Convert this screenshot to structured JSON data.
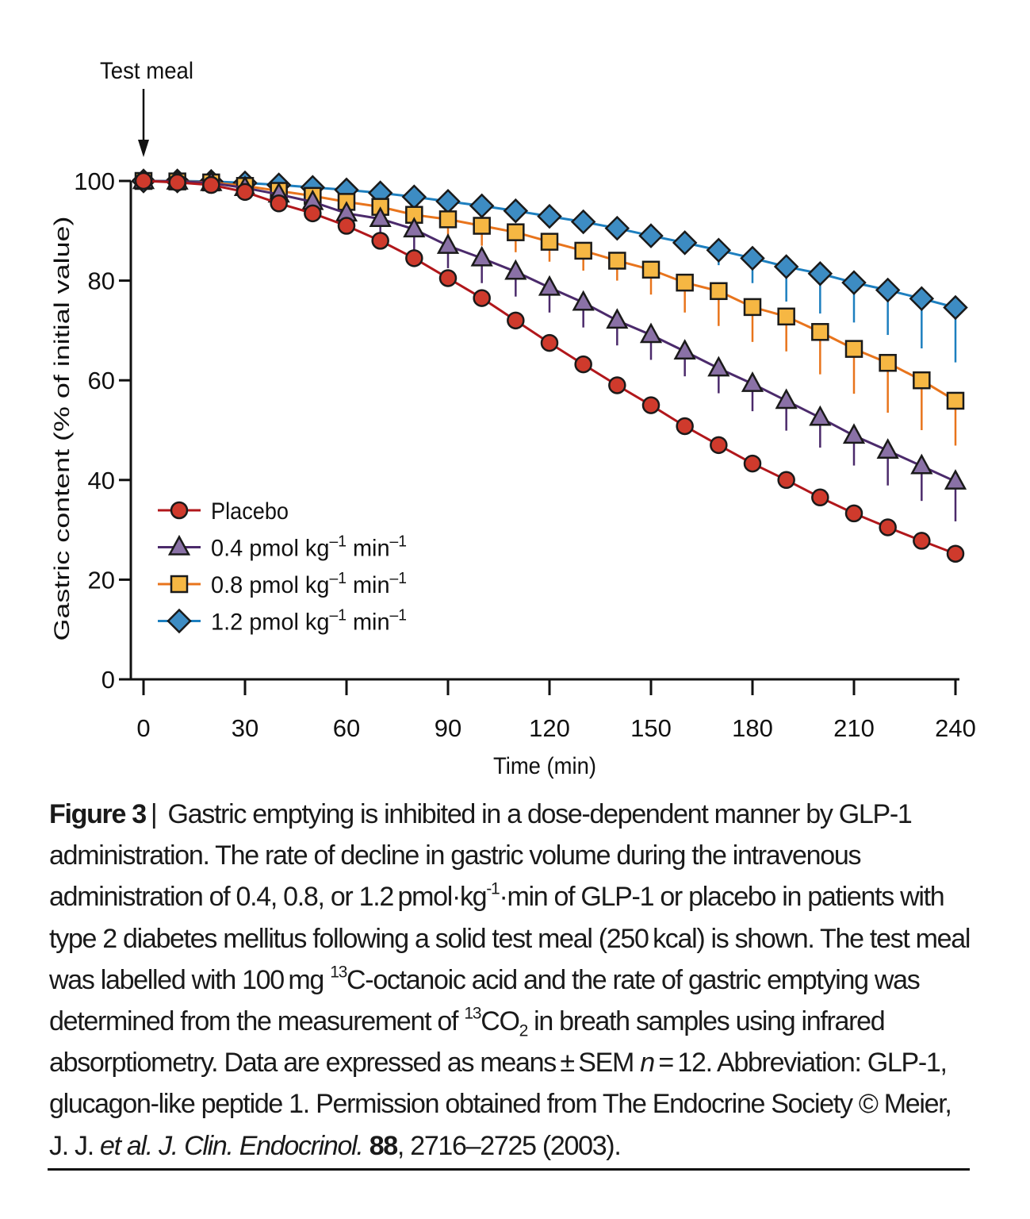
{
  "chart_data": {
    "type": "line",
    "annotation": "Test meal",
    "xlabel": "Time (min)",
    "ylabel": "Gastric content (% of initial value)",
    "xlim": [
      0,
      240
    ],
    "ylim": [
      0,
      100
    ],
    "xticks": [
      "0",
      "30",
      "60",
      "90",
      "120",
      "150",
      "180",
      "210",
      "240"
    ],
    "yticks": [
      "0",
      "20",
      "40",
      "60",
      "80",
      "100"
    ],
    "x": [
      0,
      10,
      20,
      30,
      40,
      50,
      60,
      70,
      80,
      90,
      100,
      110,
      120,
      130,
      140,
      150,
      160,
      170,
      180,
      190,
      200,
      210,
      220,
      230,
      240
    ],
    "legend_position": "lower-left",
    "series": [
      {
        "name": "Placebo",
        "marker": "circle",
        "line_color": "#b1171b",
        "fill_color": "#cf3a2c",
        "legend": {
          "text": "Placebo"
        },
        "values": [
          100,
          99.7,
          99.2,
          97.8,
          95.5,
          93.5,
          91,
          88,
          84.5,
          80.5,
          76.5,
          72,
          67.5,
          63.2,
          59,
          55,
          50.8,
          47,
          43.3,
          40,
          36.5,
          33.3,
          30.5,
          27.8,
          25.2
        ],
        "errors": [
          0,
          0,
          0,
          0,
          0,
          0,
          0,
          0,
          0,
          0,
          0,
          0,
          0,
          0,
          0,
          0,
          0,
          0,
          0,
          0,
          0,
          0,
          0,
          0,
          0
        ]
      },
      {
        "name": "0.4 pmol kg-1 min-1",
        "marker": "triangle",
        "line_color": "#4b2a6b",
        "fill_color": "#8a71a6",
        "legend": {
          "text": "0.4 pmol kg",
          "sup1": "–1",
          "mid": " min",
          "sup2": "–1"
        },
        "values": [
          100,
          99.9,
          99.6,
          98.6,
          97.3,
          95.8,
          93.5,
          92.4,
          90.3,
          87,
          84.5,
          81.8,
          78.6,
          75.6,
          72,
          69.1,
          65.8,
          62.4,
          59.3,
          55.9,
          52.5,
          48.9,
          45.9,
          42.8,
          39.7
        ],
        "errors": [
          0,
          0,
          0,
          0,
          0,
          0,
          2.5,
          3.5,
          4.5,
          4.5,
          5,
          5,
          5,
          5,
          5,
          5,
          5,
          5,
          5.5,
          6,
          6,
          6,
          7,
          7,
          8
        ]
      },
      {
        "name": "0.8 pmol kg-1 min-1",
        "marker": "square",
        "line_color": "#e8741c",
        "fill_color": "#f6b743",
        "legend": {
          "text": "0.8 pmol kg",
          "sup1": "–1",
          "mid": " min",
          "sup2": "–1"
        },
        "values": [
          100,
          99.9,
          99.7,
          99,
          98,
          97,
          95.8,
          94.8,
          93.2,
          92.3,
          91,
          89.7,
          87.8,
          86,
          84,
          82.2,
          79.6,
          77.9,
          74.7,
          72.8,
          69.7,
          66.3,
          63.5,
          60,
          55.9
        ],
        "errors": [
          0,
          0,
          0,
          0,
          0,
          0,
          1.5,
          2,
          3,
          3.5,
          4,
          4,
          4,
          4,
          4,
          5,
          6,
          7,
          7,
          7,
          8.5,
          9,
          10,
          10,
          9
        ]
      },
      {
        "name": "1.2 pmol kg-1 min-1",
        "marker": "diamond",
        "line_color": "#1d7fbf",
        "fill_color": "#3d8cc3",
        "legend": {
          "text": "1.2 pmol kg",
          "sup1": "–1",
          "mid": " min",
          "sup2": "–1"
        },
        "values": [
          100,
          100,
          99.9,
          99.6,
          99.2,
          98.7,
          98.2,
          97.6,
          96.8,
          95.9,
          95,
          94,
          92.9,
          91.8,
          90.5,
          89,
          87.6,
          86.1,
          84.5,
          82.8,
          81.4,
          79.6,
          78.1,
          76.4,
          74.6
        ],
        "errors": [
          0,
          0,
          0,
          0,
          0,
          0,
          0,
          0,
          0,
          0,
          0,
          0,
          0,
          0,
          0,
          0,
          0,
          3,
          5,
          7,
          8,
          8,
          9,
          10,
          11
        ]
      }
    ]
  },
  "caption": {
    "label": "Figure 3",
    "separator": "|",
    "p1": " Gastric emptying is inhibited in a dose-dependent manner by GLP-1 administration. The rate of decline in gastric volume during the intravenous administration of 0.4, 0.8, or 1.2 pmol·kg",
    "sup_kg": "-1",
    "p2": "·min of GLP-1 or placebo in patients with type 2 diabetes mellitus following a solid test meal (250 kcal) is shown. The test meal was labelled with 100 mg ",
    "sup_13a": "13",
    "p3": "C-octanoic acid and the rate of gastric emptying was determined from the measurement of ",
    "sup_13b": "13",
    "p4": "CO",
    "sub_2": "2",
    "p5": " in breath samples using infrared absorptiometry. Data are expressed as means ± SEM ",
    "n_var": "n",
    "p6": " = 12. Abbreviation: GLP-1, glucagon-like peptide 1. Permission obtained from The Endocrine Society © Meier, J. J. ",
    "etal": "et al.",
    "p7": " ",
    "journal": "J. Clin. Endocrinol.",
    "p8": " ",
    "volume": "88",
    "p9": ", 2716–2725 (2003)."
  }
}
